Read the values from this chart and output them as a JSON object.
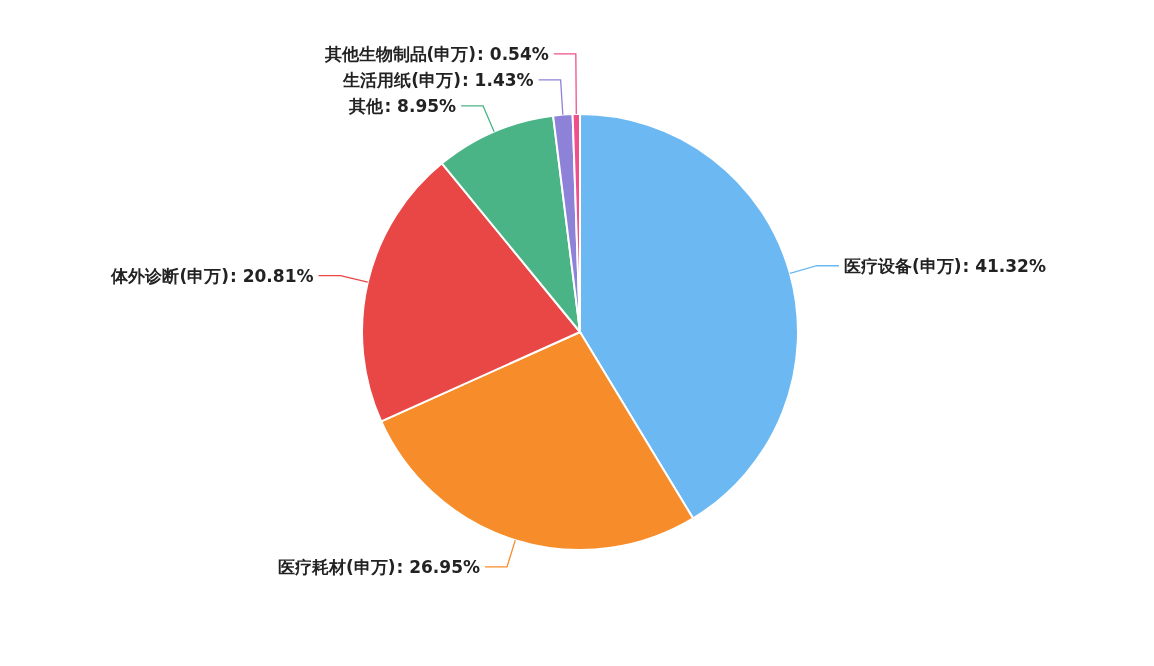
{
  "chart_data": {
    "type": "pie",
    "categories": [
      "医疗设备(申万)",
      "医疗耗材(申万)",
      "体外诊断(申万)",
      "其他",
      "生活用纸(申万)",
      "其他生物制品(申万)"
    ],
    "values": [
      41.32,
      26.95,
      20.81,
      8.95,
      1.43,
      0.54
    ],
    "colors": [
      "#6cb8f2",
      "#f78c2a",
      "#e94646",
      "#4bb487",
      "#8e82d8",
      "#f0508a"
    ],
    "value_labels": [
      ": 41.32%",
      ": 26.95%",
      ": 20.81%",
      ": 8.95%",
      ": 1.43%",
      ": 0.54%"
    ]
  }
}
